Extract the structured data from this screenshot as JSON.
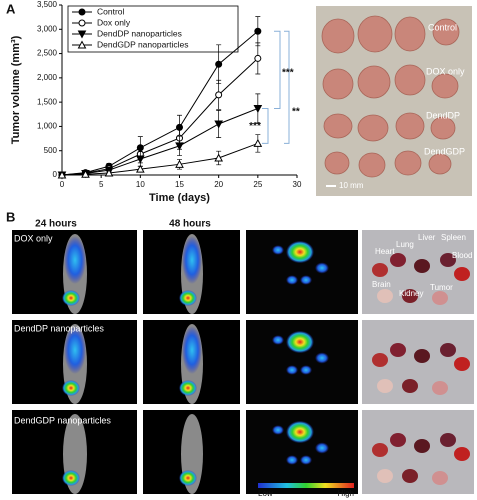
{
  "chart_data": {
    "type": "line",
    "x_label": "Time (days)",
    "y_label": "Tumor volume (mm³)",
    "xlim": [
      0,
      30
    ],
    "xticks": [
      0,
      5,
      10,
      15,
      20,
      25,
      30
    ],
    "ylim": [
      0,
      3500
    ],
    "yticks": [
      0,
      500,
      {
        "value": 1000,
        "label": "1,000"
      },
      {
        "value": 1500,
        "label": "1,500"
      },
      {
        "value": 2000,
        "label": "2,000"
      },
      {
        "value": 2500,
        "label": "2,500"
      },
      {
        "value": 3000,
        "label": "3,000"
      },
      {
        "value": 3500,
        "label": "3,500"
      }
    ],
    "x": [
      0,
      3,
      6,
      10,
      15,
      20,
      25
    ],
    "series": [
      {
        "name": "Control",
        "color": "#000000",
        "marker": "circle",
        "filled": true,
        "values": [
          0,
          50,
          180,
          560,
          980,
          2280,
          2960
        ],
        "errors": [
          10,
          40,
          60,
          230,
          250,
          400,
          300
        ]
      },
      {
        "name": "Dox only",
        "color": "#000000",
        "marker": "circle",
        "filled": false,
        "values": [
          0,
          40,
          130,
          430,
          760,
          1650,
          2400
        ],
        "errors": [
          10,
          40,
          60,
          180,
          230,
          300,
          320
        ]
      },
      {
        "name": "DendDP nanoparticles",
        "color": "#000000",
        "marker": "triangle-down",
        "filled": true,
        "values": [
          0,
          30,
          100,
          330,
          600,
          1050,
          1370
        ],
        "errors": [
          10,
          30,
          50,
          150,
          200,
          280,
          300
        ]
      },
      {
        "name": "DendGDP nanoparticles",
        "color": "#000000",
        "marker": "triangle-up",
        "filled": false,
        "values": [
          0,
          15,
          40,
          120,
          220,
          350,
          650
        ],
        "errors": [
          5,
          20,
          30,
          60,
          100,
          140,
          180
        ]
      }
    ],
    "annotations": [
      "***",
      "***",
      "**"
    ]
  },
  "panels": {
    "a": {
      "label": "A",
      "photo_labels": [
        "Control",
        "DOX only",
        "DendDP",
        "DendGDP"
      ],
      "scale": "10 mm"
    },
    "b": {
      "label": "B",
      "columns": [
        "24 hours",
        "48 hours"
      ],
      "rows": [
        "DOX only",
        "DendDP nanoparticles",
        "DendGDP nanoparticles"
      ],
      "organs": [
        "Heart",
        "Lung",
        "Liver",
        "Spleen",
        "Blood",
        "Brain",
        "Kidney",
        "Tumor"
      ],
      "colorbar": {
        "low": "Low",
        "high": "High"
      }
    }
  }
}
